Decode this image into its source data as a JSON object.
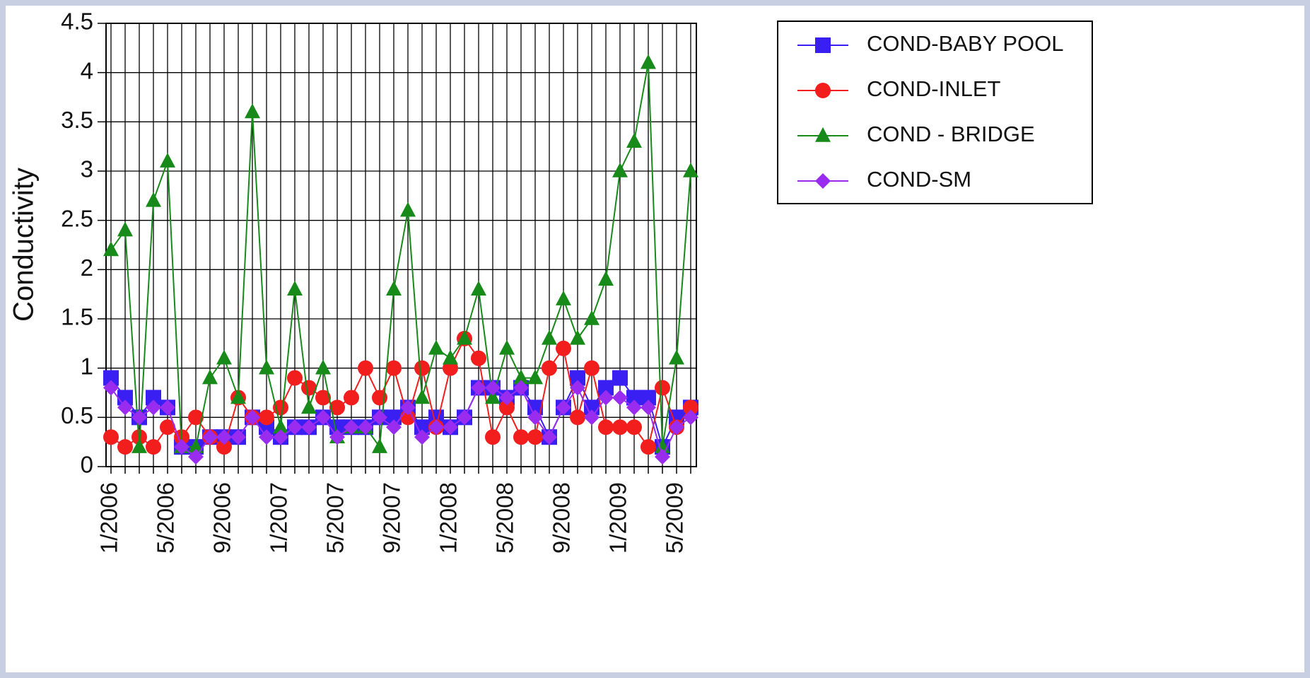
{
  "chart_data": {
    "type": "line",
    "y_label": "Conductivity",
    "categories": [
      "1/2006",
      null,
      null,
      null,
      "5/2006",
      null,
      null,
      null,
      "9/2006",
      null,
      null,
      null,
      "1/2007",
      null,
      null,
      null,
      "5/2007",
      null,
      null,
      null,
      "9/2007",
      null,
      null,
      null,
      "1/2008",
      null,
      null,
      null,
      "5/2008",
      null,
      null,
      null,
      "9/2008",
      null,
      null,
      null,
      "1/2009",
      null,
      null,
      null,
      "5/2009",
      null
    ],
    "series": [
      {
        "name": "COND-BABY POOL",
        "color": "#3a1ff2",
        "marker": "square",
        "values": [
          0.9,
          0.7,
          0.5,
          0.7,
          0.6,
          0.2,
          0.2,
          0.3,
          0.3,
          0.3,
          0.5,
          0.4,
          0.3,
          0.4,
          0.4,
          0.5,
          0.4,
          0.4,
          0.4,
          0.5,
          0.5,
          0.6,
          0.4,
          0.5,
          0.4,
          0.5,
          0.8,
          0.8,
          0.7,
          0.8,
          0.6,
          0.3,
          0.6,
          0.9,
          0.6,
          0.8,
          0.9,
          0.7,
          0.7,
          0.2,
          0.5,
          0.6
        ]
      },
      {
        "name": "COND-INLET",
        "color": "#f21d1d",
        "marker": "circle",
        "values": [
          0.3,
          0.2,
          0.3,
          0.2,
          0.4,
          0.3,
          0.5,
          0.3,
          0.2,
          0.7,
          0.5,
          0.5,
          0.6,
          0.9,
          0.8,
          0.7,
          0.6,
          0.7,
          1.0,
          0.7,
          1.0,
          0.5,
          1.0,
          0.4,
          1.0,
          1.3,
          1.1,
          0.3,
          0.6,
          0.3,
          0.3,
          1.0,
          1.2,
          0.5,
          1.0,
          0.4,
          0.4,
          0.4,
          0.2,
          0.8,
          0.4,
          0.6
        ]
      },
      {
        "name": "COND - BRIDGE",
        "color": "#178a1a",
        "marker": "triangle",
        "values": [
          2.2,
          2.4,
          0.2,
          2.7,
          3.1,
          0.2,
          0.2,
          0.9,
          1.1,
          0.7,
          3.6,
          1.0,
          0.4,
          1.8,
          0.6,
          1.0,
          0.3,
          0.4,
          0.4,
          0.2,
          1.8,
          2.6,
          0.7,
          1.2,
          1.1,
          1.3,
          1.8,
          0.7,
          1.2,
          0.9,
          0.9,
          1.3,
          1.7,
          1.3,
          1.5,
          1.9,
          3.0,
          3.3,
          4.1,
          0.2,
          1.1,
          3.0
        ]
      },
      {
        "name": "COND-SM",
        "color": "#9a2cf0",
        "marker": "diamond",
        "values": [
          0.8,
          0.6,
          0.5,
          0.6,
          0.6,
          0.2,
          0.1,
          0.3,
          0.3,
          0.3,
          0.5,
          0.3,
          0.3,
          0.4,
          0.4,
          0.5,
          0.3,
          0.4,
          0.4,
          0.5,
          0.4,
          0.6,
          0.3,
          0.4,
          0.4,
          0.5,
          0.8,
          0.8,
          0.7,
          0.8,
          0.5,
          0.3,
          0.6,
          0.8,
          0.5,
          0.7,
          0.7,
          0.6,
          0.6,
          0.1,
          0.4,
          0.5
        ]
      }
    ],
    "ylim": [
      0,
      4.5
    ],
    "yticks": [
      0,
      0.5,
      1,
      1.5,
      2,
      2.5,
      3,
      3.5,
      4,
      4.5
    ],
    "grid": true,
    "legend": "upper right"
  }
}
